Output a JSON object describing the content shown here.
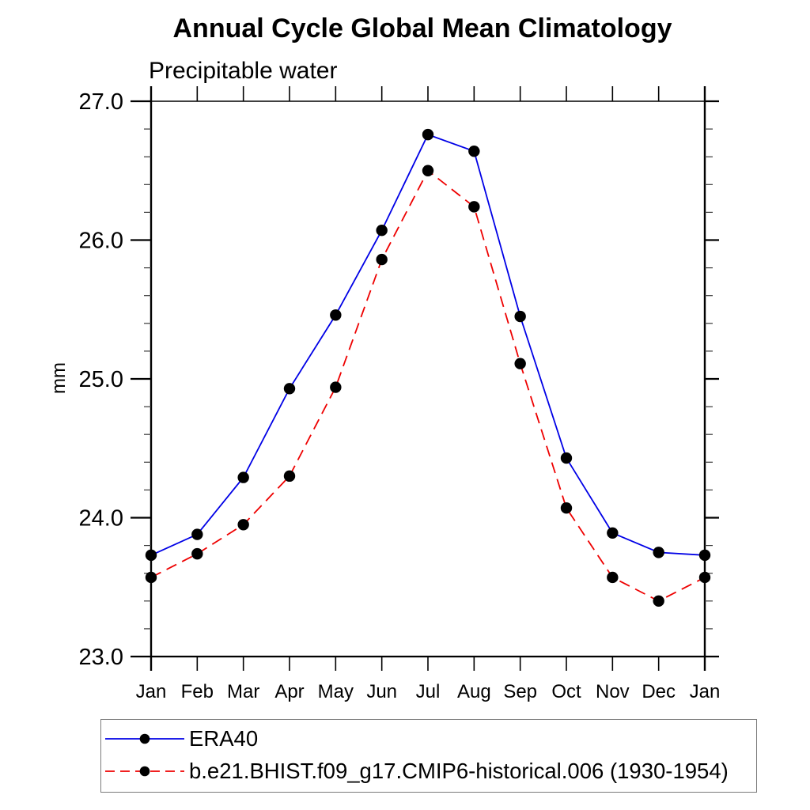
{
  "chart_data": {
    "type": "line",
    "title": "Annual Cycle Global Mean Climatology",
    "subtitle": "Precipitable water",
    "ylabel": "mm",
    "ylim": [
      23.0,
      27.0
    ],
    "y_major_tick_step": 1.0,
    "y_minor_tick_step": 0.2,
    "y_tick_labels": [
      "23.0",
      "24.0",
      "25.0",
      "26.0",
      "27.0"
    ],
    "categories": [
      "Jan",
      "Feb",
      "Mar",
      "Apr",
      "May",
      "Jun",
      "Jul",
      "Aug",
      "Sep",
      "Oct",
      "Nov",
      "Dec",
      "Jan"
    ],
    "grid": false,
    "legend_position": "bottom-left",
    "series": [
      {
        "name": "ERA40",
        "color": "#0000e6",
        "line_style": "solid",
        "marker": "circle",
        "marker_color": "#000000",
        "values": [
          23.73,
          23.88,
          24.29,
          24.93,
          25.46,
          26.07,
          26.76,
          26.64,
          25.45,
          24.43,
          23.89,
          23.75,
          23.73
        ]
      },
      {
        "name": "b.e21.BHIST.f09_g17.CMIP6-historical.006 (1930-1954)",
        "color": "#ee0000",
        "line_style": "dashed",
        "marker": "circle",
        "marker_color": "#000000",
        "values": [
          23.57,
          23.74,
          23.95,
          24.3,
          24.94,
          25.86,
          26.5,
          26.24,
          25.11,
          24.07,
          23.57,
          23.4,
          23.57
        ]
      }
    ]
  }
}
